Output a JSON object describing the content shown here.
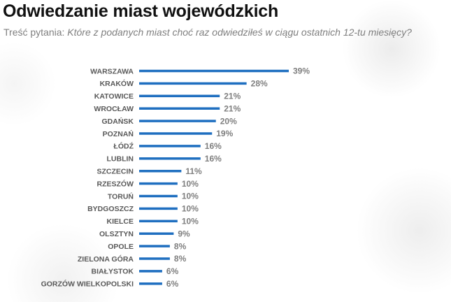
{
  "header": {
    "title": "Odwiedzanie miast wojewódzkich",
    "question_prefix": "Treść pytania:",
    "question_text": "Które z podanych miast choć raz odwiedziłeś w ciągu ostatnich 12-tu miesięcy?"
  },
  "chart_data": {
    "type": "bar",
    "orientation": "horizontal",
    "title": "Odwiedzanie miast wojewódzkich",
    "categories": [
      "WARSZAWA",
      "KRAKÓW",
      "KATOWICE",
      "WROCŁAW",
      "GDAŃSK",
      "POZNAŃ",
      "ŁÓDŹ",
      "LUBLIN",
      "SZCZECIN",
      "RZESZÓW",
      "TORUŃ",
      "BYDGOSZCZ",
      "KIELCE",
      "OLSZTYN",
      "OPOLE",
      "ZIELONA GÓRA",
      "BIAŁYSTOK",
      "GORZÓW WIELKOPOLSKI"
    ],
    "values": [
      39,
      28,
      21,
      21,
      20,
      19,
      16,
      16,
      11,
      10,
      10,
      10,
      10,
      9,
      8,
      8,
      6,
      6
    ],
    "value_labels": [
      "39%",
      "28%",
      "21%",
      "21%",
      "20%",
      "19%",
      "16%",
      "16%",
      "11%",
      "10%",
      "10%",
      "10%",
      "10%",
      "9%",
      "8%",
      "8%",
      "6%",
      "6%"
    ],
    "xlim": [
      0,
      39
    ],
    "grid": false,
    "legend": "none",
    "bar_color": "#1f6fc0"
  }
}
